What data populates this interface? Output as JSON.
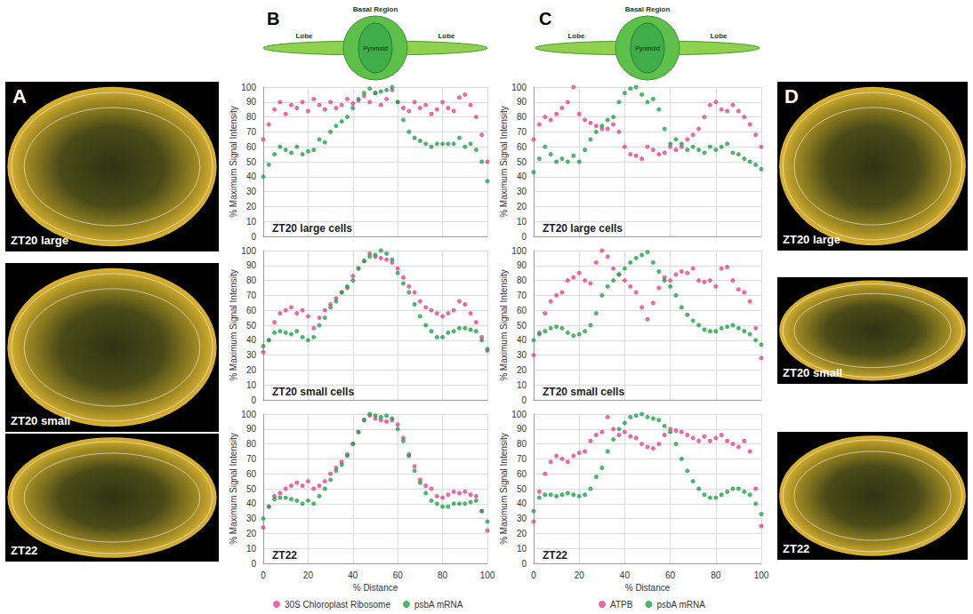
{
  "panels": [
    {
      "letter": "A",
      "images": [
        "ZT20 large",
        "ZT20 small",
        "ZT22"
      ]
    },
    {
      "letter": "D",
      "images": [
        "ZT20 large",
        "ZT20 small",
        "ZT22"
      ]
    }
  ],
  "diagrams": [
    {
      "letter": "B",
      "basal": "Basal Region",
      "lobes": [
        "Lobe",
        "Lobe"
      ],
      "pyrenoid": "Pyrenoid"
    },
    {
      "letter": "C",
      "basal": "Basal Region",
      "lobes": [
        "Lobe",
        "Lobe"
      ],
      "pyrenoid": "Pyrenoid"
    }
  ],
  "chart_data": [
    {
      "type": "scatter",
      "title": "ZT20 large cells",
      "ylabel": "% Maximum Signal Intensity",
      "marker": "circle",
      "grid": true,
      "tick_labels": "y",
      "xlim": [
        0,
        100
      ],
      "xticks": [
        0,
        20,
        40,
        60,
        80,
        100
      ],
      "ylim": [
        0,
        100
      ],
      "yticks": [
        0,
        10,
        20,
        30,
        40,
        50,
        60,
        70,
        80,
        90,
        100
      ],
      "x": [
        0,
        2.5,
        5,
        7.5,
        10,
        12.5,
        15,
        17.5,
        20,
        22.5,
        25,
        27.5,
        30,
        32.5,
        35,
        37.5,
        40,
        42.5,
        45,
        47.5,
        50,
        52.5,
        55,
        57.5,
        60,
        62.5,
        65,
        67.5,
        70,
        72.5,
        75,
        77.5,
        80,
        82.5,
        85,
        87.5,
        90,
        92.5,
        95,
        97.5,
        100
      ],
      "series": [
        {
          "name": "30S Chloroplast Ribosome",
          "color": "#e6428f",
          "values": [
            65,
            75,
            85,
            90,
            82,
            88,
            86,
            90,
            84,
            92,
            88,
            85,
            90,
            86,
            88,
            92,
            89,
            91,
            94,
            90,
            96,
            88,
            92,
            98,
            90,
            86,
            84,
            90,
            86,
            88,
            82,
            85,
            90,
            86,
            84,
            93,
            95,
            88,
            80,
            68,
            50
          ]
        },
        {
          "name": "psbA mRNA",
          "color": "#1fa34a",
          "values": [
            40,
            48,
            55,
            60,
            58,
            56,
            60,
            55,
            57,
            58,
            65,
            63,
            70,
            74,
            77,
            80,
            86,
            92,
            96,
            99,
            96,
            97,
            98,
            100,
            90,
            78,
            70,
            66,
            64,
            62,
            60,
            62,
            62,
            62,
            62,
            66,
            60,
            62,
            58,
            50,
            37
          ]
        }
      ]
    },
    {
      "type": "scatter",
      "title": "ZT20 small cells",
      "ylabel": "% Maximum Signal Intensity",
      "marker": "circle",
      "grid": true,
      "tick_labels": "y",
      "xlim": [
        0,
        100
      ],
      "xticks": [
        0,
        20,
        40,
        60,
        80,
        100
      ],
      "ylim": [
        0,
        100
      ],
      "yticks": [
        0,
        10,
        20,
        30,
        40,
        50,
        60,
        70,
        80,
        90,
        100
      ],
      "x": [
        0,
        2.5,
        5,
        7.5,
        10,
        12.5,
        15,
        17.5,
        20,
        22.5,
        25,
        27.5,
        30,
        32.5,
        35,
        37.5,
        40,
        42.5,
        45,
        47.5,
        50,
        52.5,
        55,
        57.5,
        60,
        62.5,
        65,
        67.5,
        70,
        72.5,
        75,
        77.5,
        80,
        82.5,
        85,
        87.5,
        90,
        92.5,
        95,
        97.5,
        100
      ],
      "series": [
        {
          "name": "30S Chloroplast Ribosome",
          "color": "#e6428f",
          "values": [
            32,
            40,
            52,
            58,
            60,
            62,
            58,
            60,
            56,
            48,
            55,
            60,
            64,
            68,
            72,
            75,
            83,
            88,
            93,
            98,
            96,
            95,
            94,
            92,
            88,
            82,
            76,
            72,
            66,
            62,
            60,
            58,
            56,
            58,
            60,
            66,
            64,
            58,
            52,
            42,
            33
          ]
        },
        {
          "name": "psbA mRNA",
          "color": "#1fa34a",
          "values": [
            36,
            40,
            45,
            46,
            45,
            44,
            46,
            42,
            40,
            42,
            50,
            55,
            62,
            66,
            72,
            76,
            80,
            88,
            93,
            96,
            97,
            100,
            98,
            94,
            85,
            78,
            72,
            64,
            56,
            50,
            46,
            42,
            42,
            45,
            46,
            48,
            48,
            47,
            46,
            40,
            34
          ]
        }
      ]
    },
    {
      "type": "scatter",
      "title": "ZT22",
      "ylabel": "% Maximum Signal Intensity",
      "xlabel": "% Distance",
      "marker": "circle",
      "grid": true,
      "legend": "bottom",
      "xlim": [
        0,
        100
      ],
      "xticks": [
        0,
        20,
        40,
        60,
        80,
        100
      ],
      "ylim": [
        0,
        100
      ],
      "yticks": [
        0,
        10,
        20,
        30,
        40,
        50,
        60,
        70,
        80,
        90,
        100
      ],
      "x": [
        0,
        2.5,
        5,
        7.5,
        10,
        12.5,
        15,
        17.5,
        20,
        22.5,
        25,
        27.5,
        30,
        32.5,
        35,
        37.5,
        40,
        42.5,
        45,
        47.5,
        50,
        52.5,
        55,
        57.5,
        60,
        62.5,
        65,
        67.5,
        70,
        72.5,
        75,
        77.5,
        80,
        82.5,
        85,
        87.5,
        90,
        92.5,
        95,
        97.5,
        100
      ],
      "series": [
        {
          "name": "30S Chloroplast Ribosome",
          "color": "#e6428f",
          "values": [
            24,
            38,
            45,
            47,
            50,
            52,
            54,
            52,
            55,
            50,
            52,
            55,
            60,
            64,
            68,
            73,
            80,
            88,
            96,
            99,
            97,
            96,
            95,
            96,
            93,
            84,
            73,
            65,
            56,
            52,
            50,
            45,
            44,
            46,
            48,
            47,
            48,
            46,
            45,
            35,
            22
          ]
        },
        {
          "name": "psbA mRNA",
          "color": "#1fa34a",
          "values": [
            30,
            38,
            43,
            44,
            44,
            43,
            42,
            40,
            42,
            40,
            45,
            50,
            56,
            62,
            66,
            72,
            80,
            88,
            96,
            100,
            99,
            98,
            99,
            97,
            90,
            82,
            72,
            62,
            54,
            47,
            42,
            40,
            38,
            38,
            40,
            40,
            40,
            41,
            42,
            35,
            28
          ]
        }
      ]
    },
    {
      "type": "scatter",
      "title": "ZT20 large cells",
      "ylabel": "% Maximum Signal Intensity",
      "marker": "circle",
      "grid": true,
      "tick_labels": "y",
      "xlim": [
        0,
        100
      ],
      "xticks": [
        0,
        20,
        40,
        60,
        80,
        100
      ],
      "ylim": [
        0,
        100
      ],
      "yticks": [
        0,
        10,
        20,
        30,
        40,
        50,
        60,
        70,
        80,
        90,
        100
      ],
      "x": [
        0,
        2.5,
        5,
        7.5,
        10,
        12.5,
        15,
        17.5,
        20,
        22.5,
        25,
        27.5,
        30,
        32.5,
        35,
        37.5,
        40,
        42.5,
        45,
        47.5,
        50,
        52.5,
        55,
        57.5,
        60,
        62.5,
        65,
        67.5,
        70,
        72.5,
        75,
        77.5,
        80,
        82.5,
        85,
        87.5,
        90,
        92.5,
        95,
        97.5,
        100
      ],
      "series": [
        {
          "name": "ATPB",
          "color": "#e6428f",
          "values": [
            65,
            75,
            80,
            78,
            82,
            86,
            90,
            100,
            82,
            78,
            76,
            74,
            72,
            72,
            75,
            70,
            60,
            55,
            54,
            52,
            60,
            58,
            55,
            56,
            60,
            58,
            60,
            65,
            68,
            72,
            80,
            88,
            90,
            85,
            84,
            88,
            84,
            80,
            75,
            68,
            60
          ]
        },
        {
          "name": "psbA mRNA",
          "color": "#1fa34a",
          "values": [
            43,
            52,
            60,
            55,
            50,
            52,
            50,
            54,
            50,
            58,
            65,
            70,
            74,
            78,
            80,
            90,
            96,
            99,
            100,
            95,
            90,
            92,
            85,
            72,
            62,
            65,
            62,
            58,
            60,
            58,
            56,
            60,
            58,
            60,
            62,
            56,
            55,
            52,
            50,
            48,
            45
          ]
        }
      ]
    },
    {
      "type": "scatter",
      "title": "ZT20 small cells",
      "ylabel": "% Maximum Signal Intensity",
      "marker": "circle",
      "grid": true,
      "tick_labels": "y",
      "xlim": [
        0,
        100
      ],
      "xticks": [
        0,
        20,
        40,
        60,
        80,
        100
      ],
      "ylim": [
        0,
        100
      ],
      "yticks": [
        0,
        10,
        20,
        30,
        40,
        50,
        60,
        70,
        80,
        90,
        100
      ],
      "x": [
        0,
        2.5,
        5,
        7.5,
        10,
        12.5,
        15,
        17.5,
        20,
        22.5,
        25,
        27.5,
        30,
        32.5,
        35,
        37.5,
        40,
        42.5,
        45,
        47.5,
        50,
        52.5,
        55,
        57.5,
        60,
        62.5,
        65,
        67.5,
        70,
        72.5,
        75,
        77.5,
        80,
        82.5,
        85,
        87.5,
        90,
        92.5,
        95,
        97.5,
        100
      ],
      "series": [
        {
          "name": "ATPB",
          "color": "#e6428f",
          "values": [
            30,
            45,
            58,
            66,
            70,
            72,
            80,
            82,
            85,
            80,
            78,
            92,
            100,
            96,
            88,
            84,
            80,
            76,
            72,
            62,
            54,
            65,
            75,
            82,
            80,
            84,
            86,
            85,
            88,
            80,
            79,
            80,
            76,
            88,
            89,
            80,
            74,
            72,
            66,
            48,
            28
          ]
        },
        {
          "name": "psbA mRNA",
          "color": "#1fa34a",
          "values": [
            40,
            44,
            46,
            48,
            49,
            48,
            45,
            43,
            44,
            46,
            50,
            58,
            70,
            76,
            80,
            84,
            88,
            92,
            95,
            97,
            99,
            92,
            86,
            80,
            76,
            70,
            62,
            57,
            53,
            50,
            47,
            46,
            46,
            48,
            49,
            50,
            48,
            46,
            44,
            40,
            37
          ]
        }
      ]
    },
    {
      "type": "scatter",
      "title": "ZT22",
      "ylabel": "% Maximum Signal Intensity",
      "xlabel": "% Distance",
      "marker": "circle",
      "grid": true,
      "legend": "bottom",
      "xlim": [
        0,
        100
      ],
      "xticks": [
        0,
        20,
        40,
        60,
        80,
        100
      ],
      "ylim": [
        0,
        100
      ],
      "yticks": [
        0,
        10,
        20,
        30,
        40,
        50,
        60,
        70,
        80,
        90,
        100
      ],
      "x": [
        0,
        2.5,
        5,
        7.5,
        10,
        12.5,
        15,
        17.5,
        20,
        22.5,
        25,
        27.5,
        30,
        32.5,
        35,
        37.5,
        40,
        42.5,
        45,
        47.5,
        50,
        52.5,
        55,
        57.5,
        60,
        62.5,
        65,
        67.5,
        70,
        72.5,
        75,
        77.5,
        80,
        82.5,
        85,
        87.5,
        90,
        92.5,
        95,
        97.5,
        100
      ],
      "series": [
        {
          "name": "ATPB",
          "color": "#e6428f",
          "values": [
            28,
            48,
            60,
            68,
            72,
            70,
            68,
            72,
            74,
            75,
            82,
            86,
            88,
            98,
            90,
            86,
            88,
            85,
            84,
            80,
            78,
            77,
            80,
            86,
            90,
            89,
            88,
            86,
            84,
            82,
            85,
            82,
            84,
            86,
            82,
            80,
            78,
            82,
            75,
            50,
            25
          ]
        },
        {
          "name": "psbA mRNA",
          "color": "#1fa34a",
          "values": [
            35,
            44,
            46,
            46,
            45,
            46,
            47,
            46,
            45,
            46,
            50,
            58,
            64,
            75,
            83,
            90,
            94,
            98,
            99,
            100,
            98,
            97,
            96,
            92,
            88,
            80,
            70,
            62,
            55,
            50,
            46,
            44,
            44,
            46,
            48,
            50,
            50,
            48,
            46,
            40,
            33
          ]
        }
      ]
    }
  ]
}
